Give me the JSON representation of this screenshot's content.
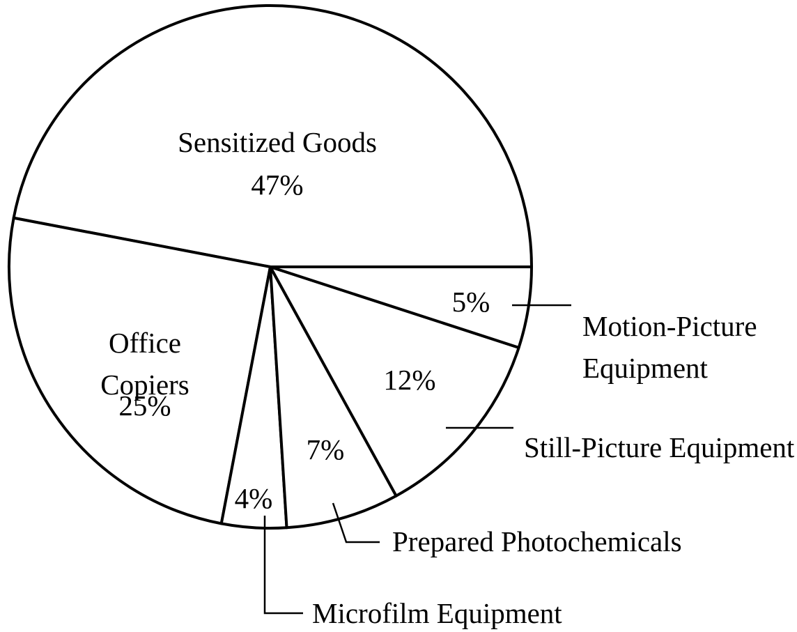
{
  "chart_data": {
    "type": "pie",
    "categories": [
      "Sensitized Goods",
      "Office Copiers",
      "Microfilm Equipment",
      "Prepared Photochemicals",
      "Still-Picture Equipment",
      "Motion-Picture Equipment"
    ],
    "values": [
      47,
      25,
      4,
      7,
      12,
      5
    ],
    "value_labels": [
      "47%",
      "25%",
      "4%",
      "7%",
      "12%",
      "5%"
    ],
    "color": "#ffffff"
  }
}
